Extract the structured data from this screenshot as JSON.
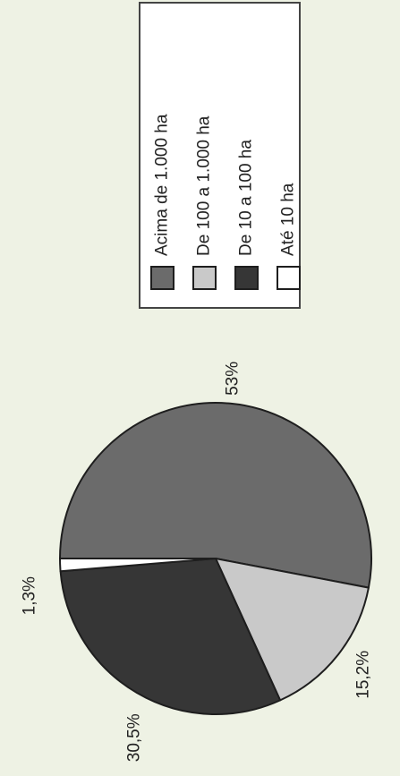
{
  "chart_data": {
    "type": "pie",
    "orientation": "rotated 90 degrees counter-clockwise",
    "categories": [
      "Acima de 1.000 ha",
      "De 100 a 1.000 ha",
      "De 10 a 100 ha",
      "Até 10 ha"
    ],
    "values": [
      53,
      15.2,
      30.5,
      1.3
    ],
    "labels": [
      "53%",
      "15,2%",
      "30,5%",
      "1,3%"
    ],
    "colors": [
      "#6b6b6b",
      "#c9c9c9",
      "#363636",
      "#ffffff"
    ],
    "legend": {
      "placement": "top-right",
      "entries": [
        "Acima de 1.000 ha",
        "De 100 a 1.000 ha",
        "De 10 a 100 ha",
        "Até 10 ha"
      ]
    }
  }
}
